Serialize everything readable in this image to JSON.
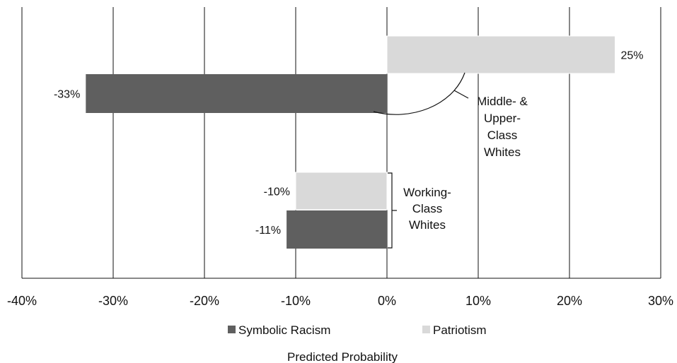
{
  "chart_data": {
    "type": "bar",
    "orientation": "horizontal",
    "xlabel": "Predicted Probability",
    "xlim": [
      -40,
      30
    ],
    "x_ticks": [
      -40,
      -30,
      -20,
      -10,
      0,
      10,
      20,
      30
    ],
    "x_tick_labels": [
      "-40%",
      "-30%",
      "-20%",
      "-10%",
      "0%",
      "10%",
      "20%",
      "30%"
    ],
    "grid": "vertical",
    "legend_position": "bottom",
    "series": [
      {
        "name": "Symbolic Racism",
        "color": "#5f5f5f"
      },
      {
        "name": "Patriotism",
        "color": "#d9d9d9"
      }
    ],
    "groups": [
      {
        "label_lines": [
          "Middle- &",
          "Upper-",
          "Class",
          "Whites"
        ],
        "bars": [
          {
            "series": "Patriotism",
            "value": 25,
            "label": "25%"
          },
          {
            "series": "Symbolic Racism",
            "value": -33,
            "label": "-33%"
          }
        ]
      },
      {
        "label_lines": [
          "Working-",
          "Class",
          "Whites"
        ],
        "bars": [
          {
            "series": "Patriotism",
            "value": -10,
            "label": "-10%"
          },
          {
            "series": "Symbolic Racism",
            "value": -11,
            "label": "-11%"
          }
        ]
      }
    ]
  }
}
